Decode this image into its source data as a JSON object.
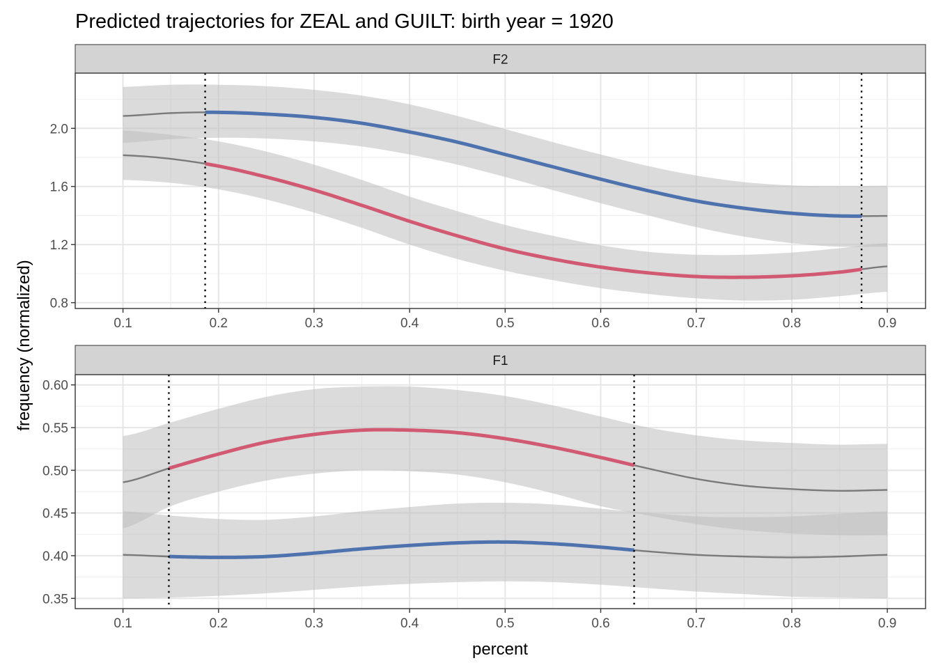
{
  "chart_data": {
    "type": "line",
    "title": "Predicted trajectories for ZEAL and GUILT: birth year = 1920",
    "xlabel": "percent",
    "ylabel": "frequency (normalized)",
    "grid": true,
    "colors": {
      "blue": "#4d72ad",
      "red": "#d15a72",
      "gray": "#888888",
      "ribbon": "#d9d9d9",
      "strip": "#d3d3d3"
    },
    "panels": [
      {
        "strip": "F2",
        "xlim": [
          0.05,
          0.94
        ],
        "ylim": [
          0.76,
          2.38
        ],
        "xticks": [
          "0.1",
          "0.2",
          "0.3",
          "0.4",
          "0.5",
          "0.6",
          "0.7",
          "0.8",
          "0.9"
        ],
        "yticks": [
          "0.8",
          "1.2",
          "1.6",
          "2.0"
        ],
        "vlines": [
          0.186,
          0.873
        ],
        "series": [
          {
            "color": "blue",
            "highlight": [
              0.186,
              0.873
            ],
            "x": [
              0.1,
              0.15,
              0.2,
              0.25,
              0.3,
              0.35,
              0.4,
              0.45,
              0.5,
              0.55,
              0.6,
              0.65,
              0.7,
              0.75,
              0.8,
              0.85,
              0.9
            ],
            "y": [
              2.085,
              2.105,
              2.11,
              2.098,
              2.075,
              2.035,
              1.975,
              1.905,
              1.82,
              1.735,
              1.65,
              1.57,
              1.5,
              1.45,
              1.415,
              1.397,
              1.397
            ],
            "lower": [
              1.9,
              1.925,
              1.935,
              1.93,
              1.91,
              1.875,
              1.82,
              1.75,
              1.665,
              1.575,
              1.485,
              1.4,
              1.32,
              1.255,
              1.21,
              1.185,
              1.185
            ],
            "upper": [
              2.285,
              2.3,
              2.3,
              2.29,
              2.265,
              2.225,
              2.165,
              2.085,
              1.995,
              1.905,
              1.82,
              1.74,
              1.675,
              1.63,
              1.607,
              1.602,
              1.605
            ]
          },
          {
            "color": "red",
            "highlight": [
              0.186,
              0.873
            ],
            "x": [
              0.1,
              0.15,
              0.2,
              0.25,
              0.3,
              0.35,
              0.4,
              0.45,
              0.5,
              0.55,
              0.6,
              0.65,
              0.7,
              0.75,
              0.8,
              0.85,
              0.9
            ],
            "y": [
              1.815,
              1.79,
              1.74,
              1.665,
              1.575,
              1.47,
              1.36,
              1.26,
              1.17,
              1.1,
              1.045,
              1.005,
              0.98,
              0.975,
              0.985,
              1.01,
              1.05
            ],
            "lower": [
              1.645,
              1.625,
              1.58,
              1.51,
              1.42,
              1.315,
              1.2,
              1.1,
              1.02,
              0.955,
              0.9,
              0.86,
              0.83,
              0.815,
              0.82,
              0.845,
              0.875
            ],
            "upper": [
              1.985,
              1.955,
              1.91,
              1.84,
              1.75,
              1.645,
              1.53,
              1.43,
              1.335,
              1.26,
              1.195,
              1.15,
              1.13,
              1.13,
              1.145,
              1.175,
              1.21
            ]
          }
        ]
      },
      {
        "strip": "F1",
        "xlim": [
          0.05,
          0.94
        ],
        "ylim": [
          0.338,
          0.612
        ],
        "xticks": [
          "0.1",
          "0.2",
          "0.3",
          "0.4",
          "0.5",
          "0.6",
          "0.7",
          "0.8",
          "0.9"
        ],
        "yticks": [
          "0.35",
          "0.40",
          "0.45",
          "0.50",
          "0.55",
          "0.60"
        ],
        "vlines": [
          0.148,
          0.635
        ],
        "series": [
          {
            "color": "red",
            "highlight": [
              0.148,
              0.635
            ],
            "x": [
              0.1,
              0.15,
              0.2,
              0.25,
              0.3,
              0.35,
              0.4,
              0.45,
              0.5,
              0.55,
              0.6,
              0.65,
              0.7,
              0.75,
              0.8,
              0.85,
              0.9
            ],
            "y": [
              0.486,
              0.503,
              0.519,
              0.533,
              0.542,
              0.547,
              0.547,
              0.544,
              0.537,
              0.527,
              0.515,
              0.502,
              0.49,
              0.482,
              0.478,
              0.476,
              0.477
            ],
            "lower": [
              0.432,
              0.458,
              0.475,
              0.488,
              0.496,
              0.5,
              0.499,
              0.495,
              0.486,
              0.473,
              0.458,
              0.447,
              0.437,
              0.43,
              0.426,
              0.424,
              0.424
            ],
            "upper": [
              0.54,
              0.556,
              0.572,
              0.586,
              0.595,
              0.598,
              0.598,
              0.594,
              0.587,
              0.576,
              0.563,
              0.55,
              0.541,
              0.535,
              0.532,
              0.53,
              0.531
            ]
          },
          {
            "color": "blue",
            "highlight": [
              0.148,
              0.635
            ],
            "x": [
              0.1,
              0.15,
              0.2,
              0.25,
              0.3,
              0.35,
              0.4,
              0.45,
              0.5,
              0.55,
              0.6,
              0.65,
              0.7,
              0.75,
              0.8,
              0.85,
              0.9
            ],
            "y": [
              0.401,
              0.399,
              0.398,
              0.399,
              0.403,
              0.408,
              0.412,
              0.415,
              0.416,
              0.414,
              0.41,
              0.405,
              0.401,
              0.399,
              0.398,
              0.399,
              0.401
            ],
            "lower": [
              0.35,
              0.351,
              0.353,
              0.356,
              0.36,
              0.364,
              0.367,
              0.369,
              0.37,
              0.369,
              0.366,
              0.362,
              0.358,
              0.355,
              0.352,
              0.351,
              0.35
            ],
            "upper": [
              0.452,
              0.447,
              0.443,
              0.442,
              0.446,
              0.452,
              0.457,
              0.461,
              0.462,
              0.46,
              0.455,
              0.45,
              0.446,
              0.445,
              0.446,
              0.449,
              0.452
            ]
          }
        ]
      }
    ]
  }
}
